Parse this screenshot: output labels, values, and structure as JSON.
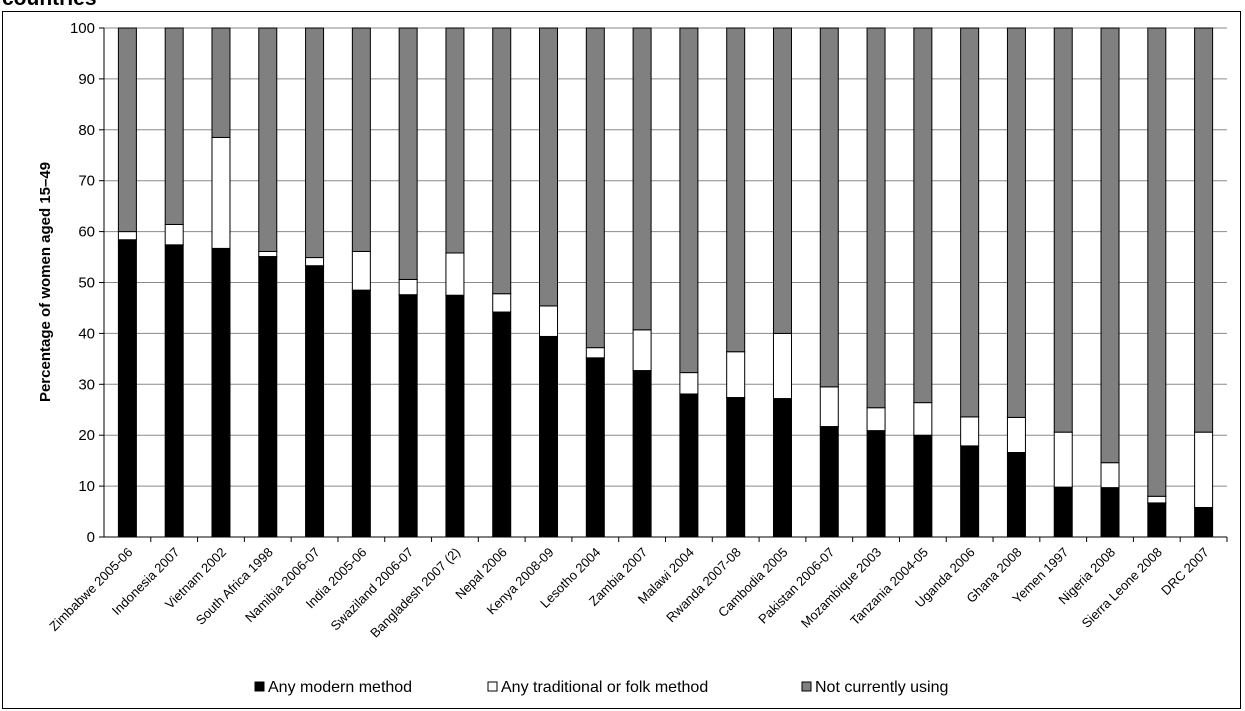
{
  "chart_data": {
    "type": "bar",
    "stacked": true,
    "title": "countries",
    "xlabel": "",
    "ylabel": "Percentage of women aged 15–49",
    "ylim": [
      0,
      100
    ],
    "yticks": [
      0,
      10,
      20,
      30,
      40,
      50,
      60,
      70,
      80,
      90,
      100
    ],
    "grid": true,
    "legend": "bottom",
    "categories": [
      "Zimbabwe 2005-06",
      "Indonesia 2007",
      "Vietnam 2002",
      "South Africa 1998",
      "Namibia 2006-07",
      "India 2005-06",
      "Swaziland 2006-07",
      "Bangladesh 2007 (2)",
      "Nepal 2006",
      "Kenya 2008-09",
      "Lesotho 2004",
      "Zambia 2007",
      "Malawi 2004",
      "Rwanda 2007-08",
      "Cambodia 2005",
      "Pakistan 2006-07",
      "Mozambique 2003",
      "Tanzania 2004-05",
      "Uganda 2006",
      "Ghana 2008",
      "Yemen 1997",
      "Nigeria 2008",
      "Sierra Leone 2008",
      "DRC 2007"
    ],
    "series": [
      {
        "name": "Any modern method",
        "color": "#000000",
        "values": [
          58.4,
          57.4,
          56.7,
          55.1,
          53.3,
          48.5,
          47.6,
          47.5,
          44.2,
          39.4,
          35.2,
          32.7,
          28.1,
          27.4,
          27.2,
          21.7,
          20.9,
          20.0,
          17.9,
          16.6,
          9.8,
          9.7,
          6.7,
          5.8
        ]
      },
      {
        "name": "Any traditional or folk method",
        "color": "#ffffff",
        "values": [
          1.6,
          4.0,
          21.8,
          1.0,
          1.6,
          7.6,
          3.0,
          8.3,
          3.6,
          6.0,
          2.0,
          8.0,
          4.2,
          9.0,
          12.8,
          7.8,
          4.5,
          6.4,
          5.7,
          6.9,
          10.8,
          4.9,
          1.3,
          14.8
        ]
      },
      {
        "name": "Not currently using",
        "color": "#808080",
        "values": [
          40.0,
          38.6,
          21.5,
          43.9,
          45.1,
          43.9,
          49.4,
          44.2,
          52.2,
          54.6,
          62.8,
          59.3,
          67.7,
          63.6,
          60.0,
          70.5,
          74.6,
          73.6,
          76.4,
          76.5,
          79.4,
          85.4,
          92.0,
          79.4
        ]
      }
    ]
  }
}
